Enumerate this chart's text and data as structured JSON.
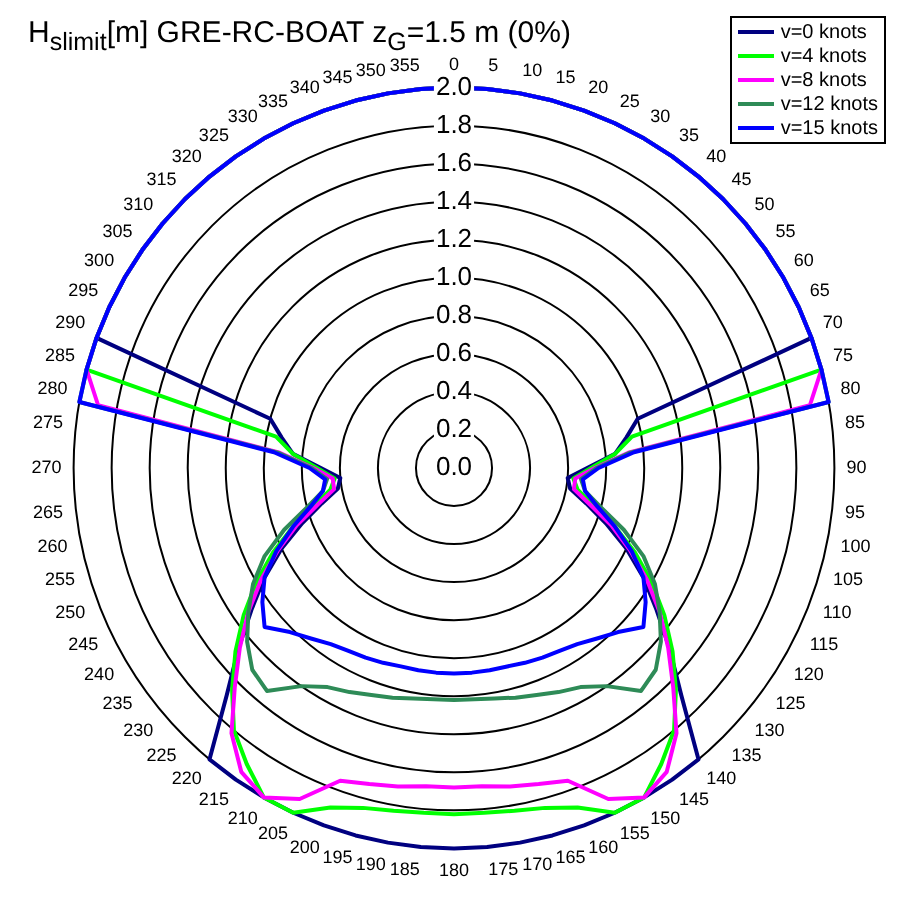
{
  "chart_data": {
    "type": "radar",
    "title": "H$_{slimit}$[m] GRE-RC-BOAT z$_{G}$=1.5 m (0%)",
    "categories": [
      "0",
      "5",
      "10",
      "15",
      "20",
      "25",
      "30",
      "35",
      "40",
      "45",
      "50",
      "55",
      "60",
      "65",
      "70",
      "75",
      "80",
      "85",
      "90",
      "95",
      "100",
      "105",
      "110",
      "115",
      "120",
      "125",
      "130",
      "135",
      "140",
      "145",
      "150",
      "155",
      "160",
      "165",
      "170",
      "175",
      "180",
      "185",
      "190",
      "195",
      "200",
      "205",
      "210",
      "215",
      "220",
      "225",
      "230",
      "235",
      "240",
      "245",
      "250",
      "255",
      "260",
      "265",
      "270",
      "275",
      "280",
      "285",
      "290",
      "295",
      "300",
      "305",
      "310",
      "315",
      "320",
      "325",
      "330",
      "335",
      "340",
      "345",
      "350",
      "355"
    ],
    "ylim": [
      0,
      2
    ],
    "yticks": [
      {
        "value": 0,
        "label": "0.0"
      },
      {
        "value": 0.2,
        "label": "0.2"
      },
      {
        "value": 0.4,
        "label": "0.4"
      },
      {
        "value": 0.6,
        "label": "0.6"
      },
      {
        "value": 0.8,
        "label": "0.8"
      },
      {
        "value": 1,
        "label": "1.0"
      },
      {
        "value": 1.2,
        "label": "1.2"
      },
      {
        "value": 1.4,
        "label": "1.4"
      },
      {
        "value": 1.6,
        "label": "1.6"
      },
      {
        "value": 1.8,
        "label": "1.8"
      },
      {
        "value": 2,
        "label": "2.0"
      }
    ],
    "grid": true,
    "legend": "top right",
    "marker": "none",
    "series": [
      {
        "name": "v=0 knots",
        "color": "#000080",
        "values": [
          2,
          2,
          2,
          2,
          2,
          2,
          2,
          2,
          2,
          2,
          2,
          2,
          2,
          2,
          2,
          1.0,
          0.92,
          0.85,
          0.7,
          0.6,
          0.62,
          0.72,
          0.85,
          1.0,
          1.15,
          1.3,
          1.48,
          1.69,
          2,
          2,
          2,
          2,
          2,
          2,
          2,
          2,
          2,
          2,
          2,
          2,
          2,
          2,
          2,
          2,
          2,
          1.69,
          1.48,
          1.3,
          1.15,
          1.0,
          0.85,
          0.72,
          0.62,
          0.6,
          0.7,
          0.85,
          0.92,
          1.0,
          2,
          2,
          2,
          2,
          2,
          2,
          2,
          2,
          2,
          2,
          2,
          2,
          2,
          2
        ]
      },
      {
        "name": "v=4 knots",
        "color": "#00ff00",
        "values": [
          2,
          2,
          2,
          2,
          2,
          2,
          2,
          2,
          2,
          2,
          2,
          2,
          2,
          2,
          2,
          2,
          0.95,
          0.85,
          0.72,
          0.63,
          0.66,
          0.76,
          0.9,
          1.05,
          1.2,
          1.35,
          1.5,
          1.65,
          1.8,
          1.9,
          2.0,
          2.0,
          1.9,
          1.85,
          1.83,
          1.82,
          1.82,
          1.82,
          1.83,
          1.85,
          1.9,
          2.0,
          2.0,
          1.9,
          1.8,
          1.65,
          1.5,
          1.35,
          1.2,
          1.05,
          0.9,
          0.76,
          0.66,
          0.63,
          0.72,
          0.85,
          0.95,
          2,
          2,
          2,
          2,
          2,
          2,
          2,
          2,
          2,
          2,
          2,
          2,
          2,
          2,
          2
        ]
      },
      {
        "name": "v=8 knots",
        "color": "#ff00ff",
        "values": [
          2,
          2,
          2,
          2,
          2,
          2,
          2,
          2,
          2,
          2,
          2,
          2,
          2,
          2,
          2,
          2,
          1.9,
          0.92,
          0.74,
          0.64,
          0.64,
          0.74,
          0.88,
          1.02,
          1.17,
          1.32,
          1.47,
          1.63,
          1.82,
          1.95,
          2.0,
          1.92,
          1.75,
          1.72,
          1.7,
          1.68,
          1.68,
          1.68,
          1.7,
          1.72,
          1.75,
          1.92,
          2.0,
          1.95,
          1.82,
          1.63,
          1.47,
          1.32,
          1.17,
          1.02,
          0.88,
          0.74,
          0.64,
          0.64,
          0.74,
          0.92,
          1.9,
          2,
          2,
          2,
          2,
          2,
          2,
          2,
          2,
          2,
          2,
          2,
          2,
          2,
          2,
          2
        ]
      },
      {
        "name": "v=12 knots",
        "color": "#2e8b57",
        "values": [
          2,
          2,
          2,
          2,
          2,
          2,
          2,
          2,
          2,
          2,
          2,
          2,
          2,
          2,
          2,
          2,
          2,
          0.93,
          0.75,
          0.67,
          0.7,
          0.8,
          0.95,
          1.1,
          1.22,
          1.32,
          1.42,
          1.5,
          1.53,
          1.4,
          1.33,
          1.3,
          1.27,
          1.25,
          1.23,
          1.22,
          1.22,
          1.22,
          1.23,
          1.25,
          1.27,
          1.3,
          1.33,
          1.4,
          1.53,
          1.5,
          1.42,
          1.32,
          1.22,
          1.1,
          0.95,
          0.8,
          0.7,
          0.67,
          0.75,
          0.93,
          2,
          2,
          2,
          2,
          2,
          2,
          2,
          2,
          2,
          2,
          2,
          2,
          2,
          2,
          2,
          2
        ]
      },
      {
        "name": "v=15 knots",
        "color": "#0000ff",
        "values": [
          2,
          2,
          2,
          2,
          2,
          2,
          2,
          2,
          2,
          2,
          2,
          2,
          2,
          2,
          2,
          2,
          2,
          0.95,
          0.76,
          0.68,
          0.7,
          0.78,
          0.9,
          1.03,
          1.15,
          1.23,
          1.3,
          1.22,
          1.17,
          1.13,
          1.11,
          1.1,
          1.09,
          1.08,
          1.08,
          1.08,
          1.08,
          1.08,
          1.08,
          1.08,
          1.09,
          1.1,
          1.11,
          1.13,
          1.17,
          1.22,
          1.3,
          1.23,
          1.15,
          1.03,
          0.9,
          0.78,
          0.7,
          0.68,
          0.76,
          0.95,
          2,
          2,
          2,
          2,
          2,
          2,
          2,
          2,
          2,
          2,
          2,
          2,
          2,
          2,
          2,
          2
        ]
      }
    ]
  }
}
